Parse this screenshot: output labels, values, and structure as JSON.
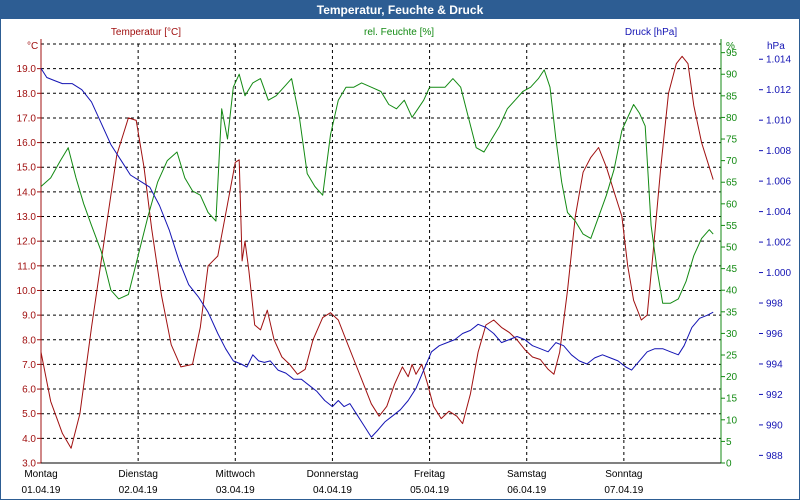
{
  "window": {
    "title": "Temperatur, Feuchte & Druck"
  },
  "chart_data": {
    "type": "line",
    "title": "Temperatur, Feuchte & Druck",
    "colors": {
      "temperature": "#a01010",
      "humidity": "#138a13",
      "pressure": "#1414b4",
      "header": "#2d5d93"
    },
    "axes": {
      "left": {
        "label": "Temperatur [°C]",
        "unit": "°C",
        "range": [
          3.0,
          20.0
        ],
        "ticks": [
          "3.0",
          "4.0",
          "5.0",
          "6.0",
          "7.0",
          "8.0",
          "9.0",
          "10.0",
          "11.0",
          "12.0",
          "13.0",
          "14.0",
          "15.0",
          "16.0",
          "17.0",
          "18.0",
          "19.0"
        ]
      },
      "right1": {
        "label": "rel. Feuchte [%]",
        "unit": "%",
        "range": [
          0,
          97
        ],
        "ticks": [
          "0",
          "5",
          "10",
          "15",
          "20",
          "25",
          "30",
          "35",
          "40",
          "45",
          "50",
          "55",
          "60",
          "65",
          "70",
          "75",
          "80",
          "85",
          "90",
          "95"
        ]
      },
      "right2": {
        "label": "Druck [hPa]",
        "unit": "hPa",
        "range": [
          987.5,
          1015.0
        ],
        "ticks": [
          "988",
          "990",
          "992",
          "994",
          "996",
          "998",
          "1.000",
          "1.002",
          "1.004",
          "1.006",
          "1.008",
          "1.010",
          "1.012",
          "1.014"
        ]
      }
    },
    "x_range_days": [
      0,
      7
    ],
    "x_ticks": [
      {
        "day": "Montag",
        "date": "01.04.19"
      },
      {
        "day": "Dienstag",
        "date": "02.04.19"
      },
      {
        "day": "Mittwoch",
        "date": "03.04.19"
      },
      {
        "day": "Donnerstag",
        "date": "04.04.19"
      },
      {
        "day": "Freitag",
        "date": "05.04.19"
      },
      {
        "day": "Samstag",
        "date": "06.04.19"
      },
      {
        "day": "Sonntag",
        "date": "07.04.19"
      }
    ],
    "grid": true,
    "series": [
      {
        "name": "Temperatur [°C]",
        "axis": "left",
        "color": "#a01010",
        "points": [
          [
            0.0,
            7.5
          ],
          [
            0.1,
            5.5
          ],
          [
            0.22,
            4.2
          ],
          [
            0.31,
            3.6
          ],
          [
            0.4,
            5.0
          ],
          [
            0.52,
            8.5
          ],
          [
            0.65,
            12.0
          ],
          [
            0.78,
            15.5
          ],
          [
            0.9,
            17.0
          ],
          [
            0.98,
            16.9
          ],
          [
            1.06,
            15.0
          ],
          [
            1.14,
            12.5
          ],
          [
            1.24,
            9.8
          ],
          [
            1.34,
            7.8
          ],
          [
            1.44,
            6.9
          ],
          [
            1.56,
            7.0
          ],
          [
            1.64,
            8.5
          ],
          [
            1.72,
            11.0
          ],
          [
            1.82,
            11.4
          ],
          [
            1.92,
            13.5
          ],
          [
            2.0,
            15.2
          ],
          [
            2.04,
            15.3
          ],
          [
            2.07,
            11.2
          ],
          [
            2.1,
            12.0
          ],
          [
            2.14,
            10.8
          ],
          [
            2.2,
            8.6
          ],
          [
            2.26,
            8.4
          ],
          [
            2.33,
            9.2
          ],
          [
            2.4,
            8.0
          ],
          [
            2.48,
            7.3
          ],
          [
            2.56,
            7.0
          ],
          [
            2.64,
            6.6
          ],
          [
            2.72,
            6.8
          ],
          [
            2.8,
            8.0
          ],
          [
            2.9,
            8.9
          ],
          [
            2.98,
            9.1
          ],
          [
            3.06,
            8.8
          ],
          [
            3.14,
            8.0
          ],
          [
            3.22,
            7.2
          ],
          [
            3.3,
            6.4
          ],
          [
            3.4,
            5.4
          ],
          [
            3.48,
            4.9
          ],
          [
            3.56,
            5.3
          ],
          [
            3.64,
            6.2
          ],
          [
            3.72,
            6.9
          ],
          [
            3.78,
            6.5
          ],
          [
            3.82,
            7.0
          ],
          [
            3.86,
            6.6
          ],
          [
            3.92,
            7.0
          ],
          [
            3.98,
            6.2
          ],
          [
            4.04,
            5.3
          ],
          [
            4.12,
            4.8
          ],
          [
            4.2,
            5.1
          ],
          [
            4.28,
            4.9
          ],
          [
            4.34,
            4.6
          ],
          [
            4.42,
            5.8
          ],
          [
            4.5,
            7.5
          ],
          [
            4.58,
            8.6
          ],
          [
            4.66,
            8.8
          ],
          [
            4.74,
            8.5
          ],
          [
            4.82,
            8.3
          ],
          [
            4.9,
            8.0
          ],
          [
            4.98,
            7.6
          ],
          [
            5.06,
            7.3
          ],
          [
            5.14,
            7.2
          ],
          [
            5.22,
            6.8
          ],
          [
            5.28,
            6.6
          ],
          [
            5.34,
            7.5
          ],
          [
            5.42,
            10.0
          ],
          [
            5.5,
            13.0
          ],
          [
            5.58,
            14.8
          ],
          [
            5.66,
            15.4
          ],
          [
            5.74,
            15.8
          ],
          [
            5.82,
            15.0
          ],
          [
            5.9,
            14.0
          ],
          [
            5.98,
            13.0
          ],
          [
            6.04,
            11.0
          ],
          [
            6.1,
            9.6
          ],
          [
            6.14,
            9.2
          ],
          [
            6.18,
            8.8
          ],
          [
            6.24,
            9.0
          ],
          [
            6.3,
            11.5
          ],
          [
            6.38,
            15.0
          ],
          [
            6.46,
            18.0
          ],
          [
            6.54,
            19.2
          ],
          [
            6.6,
            19.5
          ],
          [
            6.66,
            19.2
          ],
          [
            6.72,
            17.5
          ],
          [
            6.8,
            16.0
          ],
          [
            6.88,
            15.0
          ],
          [
            6.92,
            14.5
          ]
        ]
      },
      {
        "name": "rel. Feuchte [%]",
        "axis": "right1",
        "color": "#138a13",
        "points": [
          [
            0.0,
            64
          ],
          [
            0.1,
            66
          ],
          [
            0.2,
            70
          ],
          [
            0.28,
            73
          ],
          [
            0.36,
            66
          ],
          [
            0.44,
            60
          ],
          [
            0.52,
            55
          ],
          [
            0.62,
            49
          ],
          [
            0.72,
            40
          ],
          [
            0.8,
            38
          ],
          [
            0.9,
            39
          ],
          [
            1.0,
            48
          ],
          [
            1.1,
            57
          ],
          [
            1.2,
            65
          ],
          [
            1.3,
            70
          ],
          [
            1.4,
            72
          ],
          [
            1.48,
            66
          ],
          [
            1.56,
            63
          ],
          [
            1.64,
            62
          ],
          [
            1.72,
            58
          ],
          [
            1.8,
            56
          ],
          [
            1.86,
            82
          ],
          [
            1.92,
            75
          ],
          [
            1.98,
            87
          ],
          [
            2.04,
            90
          ],
          [
            2.1,
            85
          ],
          [
            2.18,
            88
          ],
          [
            2.26,
            89
          ],
          [
            2.34,
            84
          ],
          [
            2.42,
            85
          ],
          [
            2.5,
            87
          ],
          [
            2.58,
            89
          ],
          [
            2.66,
            80
          ],
          [
            2.74,
            67
          ],
          [
            2.82,
            64
          ],
          [
            2.9,
            62
          ],
          [
            2.98,
            76
          ],
          [
            3.06,
            84
          ],
          [
            3.14,
            87
          ],
          [
            3.22,
            87
          ],
          [
            3.3,
            88
          ],
          [
            3.4,
            87
          ],
          [
            3.5,
            86
          ],
          [
            3.58,
            83
          ],
          [
            3.66,
            82
          ],
          [
            3.74,
            84
          ],
          [
            3.82,
            80
          ],
          [
            3.88,
            82
          ],
          [
            3.94,
            84
          ],
          [
            4.0,
            87
          ],
          [
            4.08,
            87
          ],
          [
            4.16,
            87
          ],
          [
            4.24,
            89
          ],
          [
            4.32,
            87
          ],
          [
            4.4,
            80
          ],
          [
            4.48,
            73
          ],
          [
            4.56,
            72
          ],
          [
            4.64,
            75
          ],
          [
            4.72,
            78
          ],
          [
            4.8,
            82
          ],
          [
            4.88,
            84
          ],
          [
            4.96,
            86
          ],
          [
            5.04,
            87
          ],
          [
            5.12,
            89
          ],
          [
            5.18,
            91
          ],
          [
            5.24,
            87
          ],
          [
            5.3,
            75
          ],
          [
            5.36,
            65
          ],
          [
            5.42,
            58
          ],
          [
            5.5,
            56
          ],
          [
            5.58,
            53
          ],
          [
            5.66,
            52
          ],
          [
            5.74,
            57
          ],
          [
            5.82,
            62
          ],
          [
            5.9,
            68
          ],
          [
            5.98,
            77
          ],
          [
            6.04,
            80
          ],
          [
            6.1,
            83
          ],
          [
            6.16,
            81
          ],
          [
            6.22,
            78
          ],
          [
            6.28,
            55
          ],
          [
            6.34,
            45
          ],
          [
            6.4,
            37
          ],
          [
            6.48,
            37
          ],
          [
            6.56,
            38
          ],
          [
            6.64,
            42
          ],
          [
            6.72,
            48
          ],
          [
            6.8,
            52
          ],
          [
            6.88,
            54
          ],
          [
            6.92,
            53
          ]
        ]
      },
      {
        "name": "Druck [hPa]",
        "axis": "right2",
        "color": "#1414b4",
        "points": [
          [
            0.0,
            1013.4
          ],
          [
            0.06,
            1012.8
          ],
          [
            0.14,
            1012.6
          ],
          [
            0.22,
            1012.4
          ],
          [
            0.32,
            1012.4
          ],
          [
            0.42,
            1012.0
          ],
          [
            0.52,
            1011.2
          ],
          [
            0.62,
            1009.8
          ],
          [
            0.72,
            1008.4
          ],
          [
            0.82,
            1007.4
          ],
          [
            0.92,
            1006.4
          ],
          [
            1.02,
            1006.0
          ],
          [
            1.12,
            1005.6
          ],
          [
            1.22,
            1004.4
          ],
          [
            1.32,
            1002.8
          ],
          [
            1.42,
            1000.8
          ],
          [
            1.52,
            999.2
          ],
          [
            1.62,
            998.4
          ],
          [
            1.72,
            997.4
          ],
          [
            1.82,
            996.0
          ],
          [
            1.9,
            995.0
          ],
          [
            1.98,
            994.2
          ],
          [
            2.06,
            994.0
          ],
          [
            2.12,
            993.8
          ],
          [
            2.18,
            994.6
          ],
          [
            2.24,
            994.2
          ],
          [
            2.3,
            994.1
          ],
          [
            2.36,
            994.2
          ],
          [
            2.44,
            993.6
          ],
          [
            2.52,
            993.4
          ],
          [
            2.6,
            993.0
          ],
          [
            2.68,
            993.0
          ],
          [
            2.76,
            992.6
          ],
          [
            2.84,
            992.2
          ],
          [
            2.92,
            991.6
          ],
          [
            3.0,
            991.2
          ],
          [
            3.06,
            991.6
          ],
          [
            3.12,
            991.2
          ],
          [
            3.18,
            991.4
          ],
          [
            3.24,
            990.8
          ],
          [
            3.32,
            990.0
          ],
          [
            3.4,
            989.2
          ],
          [
            3.46,
            989.6
          ],
          [
            3.54,
            990.2
          ],
          [
            3.62,
            990.6
          ],
          [
            3.7,
            991.0
          ],
          [
            3.78,
            991.6
          ],
          [
            3.86,
            992.4
          ],
          [
            3.94,
            993.6
          ],
          [
            4.02,
            994.8
          ],
          [
            4.1,
            995.2
          ],
          [
            4.18,
            995.4
          ],
          [
            4.26,
            995.6
          ],
          [
            4.34,
            996.0
          ],
          [
            4.42,
            996.2
          ],
          [
            4.5,
            996.6
          ],
          [
            4.58,
            996.4
          ],
          [
            4.66,
            996.0
          ],
          [
            4.74,
            995.4
          ],
          [
            4.82,
            995.6
          ],
          [
            4.9,
            995.8
          ],
          [
            4.98,
            995.6
          ],
          [
            5.06,
            995.2
          ],
          [
            5.14,
            995.0
          ],
          [
            5.22,
            994.8
          ],
          [
            5.3,
            995.4
          ],
          [
            5.38,
            995.2
          ],
          [
            5.46,
            994.6
          ],
          [
            5.54,
            994.2
          ],
          [
            5.62,
            994.0
          ],
          [
            5.7,
            994.4
          ],
          [
            5.78,
            994.6
          ],
          [
            5.86,
            994.4
          ],
          [
            5.94,
            994.2
          ],
          [
            6.02,
            993.8
          ],
          [
            6.08,
            993.6
          ],
          [
            6.16,
            994.2
          ],
          [
            6.24,
            994.8
          ],
          [
            6.32,
            995.0
          ],
          [
            6.4,
            995.0
          ],
          [
            6.48,
            994.8
          ],
          [
            6.56,
            994.6
          ],
          [
            6.62,
            995.2
          ],
          [
            6.7,
            996.4
          ],
          [
            6.78,
            997.0
          ],
          [
            6.86,
            997.2
          ],
          [
            6.92,
            997.4
          ]
        ]
      }
    ]
  }
}
